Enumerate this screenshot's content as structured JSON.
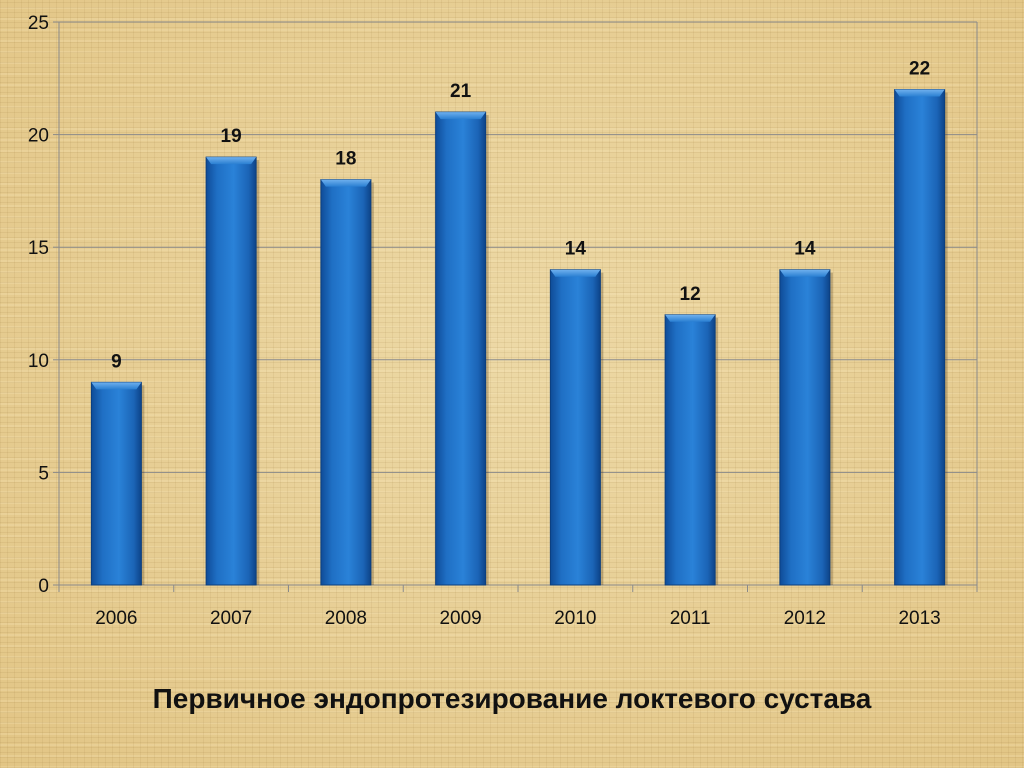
{
  "chart_data": {
    "type": "bar",
    "categories": [
      "2006",
      "2007",
      "2008",
      "2009",
      "2010",
      "2011",
      "2012",
      "2013"
    ],
    "values": [
      9,
      19,
      18,
      21,
      14,
      12,
      14,
      22
    ],
    "title": "",
    "xlabel": "Первичное эндопротезирование локтевого сустава",
    "ylabel": "",
    "ylim": [
      0,
      25
    ],
    "yticks": [
      "0",
      "5",
      "10",
      "15",
      "20",
      "25"
    ],
    "grid": true,
    "legend": "none",
    "bar_color": "#1f6fc4"
  }
}
